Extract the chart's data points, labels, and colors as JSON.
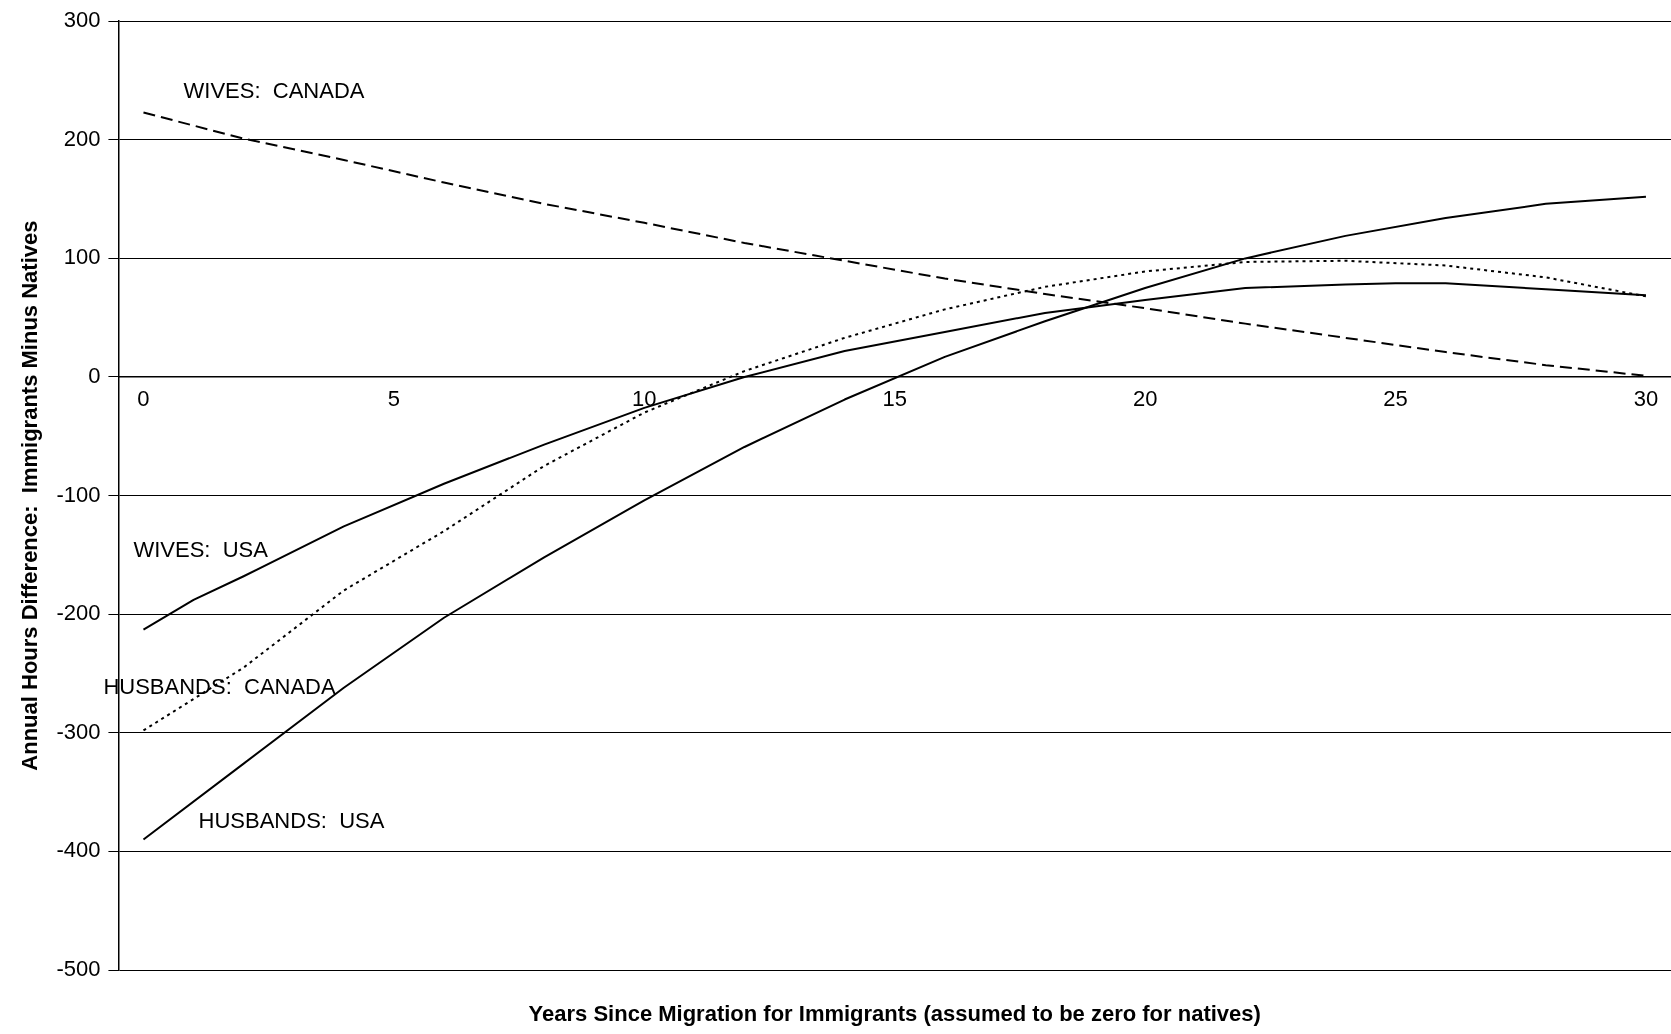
{
  "chart_data": {
    "type": "line",
    "xlabel": "Years Since Migration for Immigrants (assumed to be zero for natives)",
    "ylabel": "Annual Hours Difference:  Immigrants Minus Natives",
    "xlim": [
      -0.5,
      30.5
    ],
    "xticks": [
      0,
      5,
      10,
      15,
      20,
      25,
      30
    ],
    "ylim": [
      -500,
      300
    ],
    "yticks": [
      -500,
      -400,
      -300,
      -200,
      -100,
      0,
      100,
      200,
      300
    ],
    "grid": "y",
    "legend": false,
    "marker": "none",
    "series": [
      {
        "name": "WIVES:  CANADA",
        "color": "#000000",
        "line_style": "dashed",
        "x": [
          0,
          2,
          4,
          6,
          8,
          10,
          12,
          14,
          16,
          18,
          20,
          22,
          24,
          26,
          28,
          30
        ],
        "values": [
          223,
          201,
          183,
          164,
          146,
          130,
          113,
          98,
          83,
          70,
          58,
          45,
          33,
          21,
          10,
          1
        ]
      },
      {
        "name": "HUSBANDS:  CANADA",
        "color": "#000000",
        "line_style": "dotted",
        "x": [
          0,
          2,
          4,
          6,
          8,
          10,
          12,
          14,
          16,
          18,
          20,
          22,
          24,
          26,
          28,
          30
        ],
        "values": [
          -298,
          -245,
          -180,
          -130,
          -75,
          -30,
          5,
          33,
          57,
          76,
          89,
          97,
          98,
          94,
          84,
          68
        ]
      },
      {
        "name": "WIVES:  USA",
        "color": "#000000",
        "line_style": "solid",
        "x": [
          0,
          1,
          2,
          4,
          6,
          8,
          10,
          12,
          14,
          16,
          18,
          20,
          22,
          24,
          25,
          26,
          28,
          30
        ],
        "values": [
          -213,
          -188,
          -168,
          -126,
          -90,
          -57,
          -26,
          0,
          22,
          38,
          54,
          65,
          75,
          78,
          79,
          79,
          74,
          69
        ]
      },
      {
        "name": "HUSBANDS:  USA",
        "color": "#000000",
        "line_style": "solid",
        "x": [
          0,
          2,
          4,
          6,
          8,
          10,
          12,
          14,
          16,
          18,
          20,
          22,
          24,
          26,
          28,
          30
        ],
        "values": [
          -390,
          -326,
          -262,
          -203,
          -152,
          -104,
          -59,
          -19,
          17,
          47,
          75,
          100,
          119,
          134,
          146,
          152
        ]
      }
    ]
  }
}
